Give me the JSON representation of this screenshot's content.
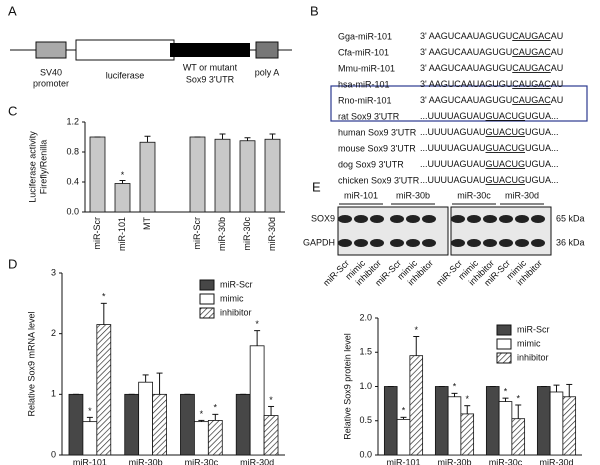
{
  "panel_labels": [
    "A",
    "B",
    "C",
    "D",
    "E"
  ],
  "diagram": {
    "labels": [
      "SV40",
      "promoter",
      "luciferase",
      "WT or mutant",
      "Sox9 3'UTR",
      "poly A"
    ]
  },
  "alignment": {
    "rows": [
      {
        "name": "Gga-miR-101",
        "seq": [
          "3' AAGUCAAUAGUGU",
          "CAUGAC",
          "AU"
        ]
      },
      {
        "name": "Cfa-miR-101",
        "seq": [
          "3' AAGUCAAUAGUGU",
          "CAUGAC",
          "AU"
        ]
      },
      {
        "name": "Mmu-miR-101",
        "seq": [
          "3' AAGUCAAUAGUGU",
          "CAUGAC",
          "AU"
        ]
      },
      {
        "name": "hsa-miR-101",
        "seq": [
          "3' AAGUCAAUAGUGU",
          "CAUGAC",
          "AU"
        ]
      },
      {
        "name": "Rno-miR-101",
        "seq": [
          "3' AAGUCAAUAGUGU",
          "CAUGAC",
          "AU"
        ]
      },
      {
        "name": "rat Sox9 3'UTR",
        "seq": [
          "...UUUUAGUAU",
          "GUACUG",
          "UGUA..."
        ]
      },
      {
        "name": "human Sox9 3'UTR",
        "seq": [
          "...UUUUAGUAU",
          "GUACUG",
          "UGUA..."
        ]
      },
      {
        "name": "mouse Sox9 3'UTR",
        "seq": [
          "...UUUUAGUAU",
          "GUACUG",
          "UGUA..."
        ]
      },
      {
        "name": "dog Sox9 3'UTR",
        "seq": [
          "...UUUUAGUAU",
          "GUACUG",
          "UGUA..."
        ]
      },
      {
        "name": "chicken Sox9 3'UTR",
        "seq": [
          "...UUUUAGUAU",
          "GUACUG",
          "UGUA..."
        ]
      }
    ]
  },
  "blot": {
    "groups": [
      "miR-101",
      "miR-30b",
      "miR-30c",
      "miR-30d"
    ],
    "bands": [
      {
        "name": "SOX9",
        "size": "65 kDa"
      },
      {
        "name": "GAPDH",
        "size": "36 kDa"
      }
    ],
    "lanes": [
      "miR-Scr",
      "mimic",
      "inhibitor"
    ]
  },
  "chart_data": [
    {
      "type": "bar",
      "ylabel": [
        "Luciferase activity",
        "Firefly/Renilla"
      ],
      "categories": [
        "miR-Scr",
        "miR-101",
        "MT",
        null,
        "miR-Scr",
        "miR-30b",
        "miR-30c",
        "miR-30d"
      ],
      "values": [
        1,
        0.38,
        0.93,
        null,
        1,
        0.97,
        0.95,
        0.97
      ],
      "errors": [
        0,
        0.04,
        0.08,
        null,
        0,
        0.07,
        0.04,
        0.07
      ],
      "significance": [
        null,
        "*",
        null,
        null,
        null,
        null,
        null,
        null
      ],
      "color": "#c8c8c8",
      "xtick_rotation": 90,
      "ylim": [
        0,
        1.2
      ],
      "yticks": [
        {
          "value": 0,
          "label": "0.0"
        },
        0.4,
        0.8,
        1.2
      ]
    },
    {
      "type": "grouped_bar",
      "ylabel": "Relative Sox9 mRNA level",
      "categories": [
        "miR-101",
        "miR-30b",
        "miR-30c",
        "miR-30d"
      ],
      "series": [
        {
          "name": "miR-Scr",
          "color": "#474747",
          "values": [
            1,
            1,
            1,
            1
          ],
          "errors": [
            0,
            0,
            0,
            0
          ],
          "significance": [
            null,
            null,
            null,
            null
          ]
        },
        {
          "name": "mimic",
          "color": "#ffffff",
          "values": [
            0.55,
            1.2,
            0.55,
            1.8
          ],
          "errors": [
            0.07,
            0.12,
            0.02,
            0.25
          ],
          "significance": [
            "*",
            null,
            "*",
            "*"
          ]
        },
        {
          "name": "inhibitor",
          "color": "#ffffff",
          "hatch": true,
          "values": [
            2.15,
            1.0,
            0.57,
            0.65
          ],
          "errors": [
            0.35,
            0.35,
            0.1,
            0.15
          ],
          "significance": [
            "*",
            null,
            "*",
            "*"
          ]
        }
      ],
      "legend": "top-right",
      "ylim": [
        0,
        3
      ],
      "yticks": [
        0,
        1,
        2,
        3
      ]
    },
    {
      "type": "grouped_bar",
      "ylabel": "Relative Sox9 protein level",
      "categories": [
        "miR-101",
        "miR-30b",
        "miR-30c",
        "miR-30d"
      ],
      "series": [
        {
          "name": "miR-Scr",
          "color": "#474747",
          "values": [
            1,
            1,
            1,
            1
          ],
          "errors": [
            0,
            0,
            0,
            0
          ],
          "significance": [
            null,
            null,
            null,
            null
          ]
        },
        {
          "name": "mimic",
          "color": "#ffffff",
          "values": [
            0.52,
            0.85,
            0.78,
            0.92
          ],
          "errors": [
            0.03,
            0.05,
            0.05,
            0.1
          ],
          "significance": [
            "*",
            "*",
            "*",
            null
          ]
        },
        {
          "name": "inhibitor",
          "color": "#ffffff",
          "hatch": true,
          "values": [
            1.45,
            0.6,
            0.53,
            0.85
          ],
          "errors": [
            0.28,
            0.12,
            0.2,
            0.18
          ],
          "significance": [
            "*",
            "*",
            "*",
            null
          ]
        }
      ],
      "legend": "top-right",
      "ylim": [
        0,
        2
      ],
      "yticks": [
        {
          "value": 0,
          "label": "0.0"
        },
        0.5,
        {
          "value": 1,
          "label": "1.0"
        },
        1.5,
        {
          "value": 2,
          "label": "2.0"
        }
      ]
    }
  ]
}
